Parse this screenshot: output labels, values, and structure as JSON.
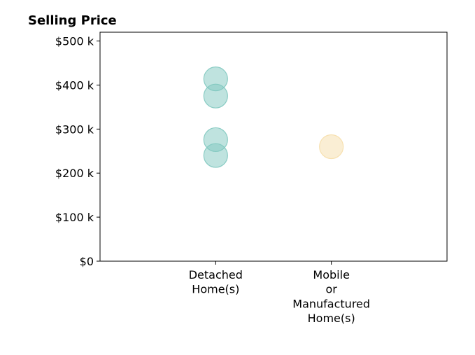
{
  "chart_data": {
    "type": "scatter",
    "title": "Selling Price",
    "xlabel": "",
    "ylabel": "",
    "categories": [
      [
        "Detached",
        "Home(s)"
      ],
      [
        "Mobile",
        "or",
        "Manufactured",
        "Home(s)"
      ]
    ],
    "y_ticks": [
      {
        "value": 0,
        "label": "$0"
      },
      {
        "value": 100000,
        "label": "$100 k"
      },
      {
        "value": 200000,
        "label": "$200 k"
      },
      {
        "value": 300000,
        "label": "$300 k"
      },
      {
        "value": 400000,
        "label": "$400 k"
      },
      {
        "value": 500000,
        "label": "$500 k"
      }
    ],
    "ylim": [
      0,
      520000
    ],
    "grid": false,
    "series": [
      {
        "color": "#7fc8bf",
        "category_index": 0,
        "values": [
          414000,
          375000,
          276000,
          240000
        ]
      },
      {
        "color": "#f6deaa",
        "category_index": 1,
        "values": [
          260000
        ]
      }
    ]
  }
}
